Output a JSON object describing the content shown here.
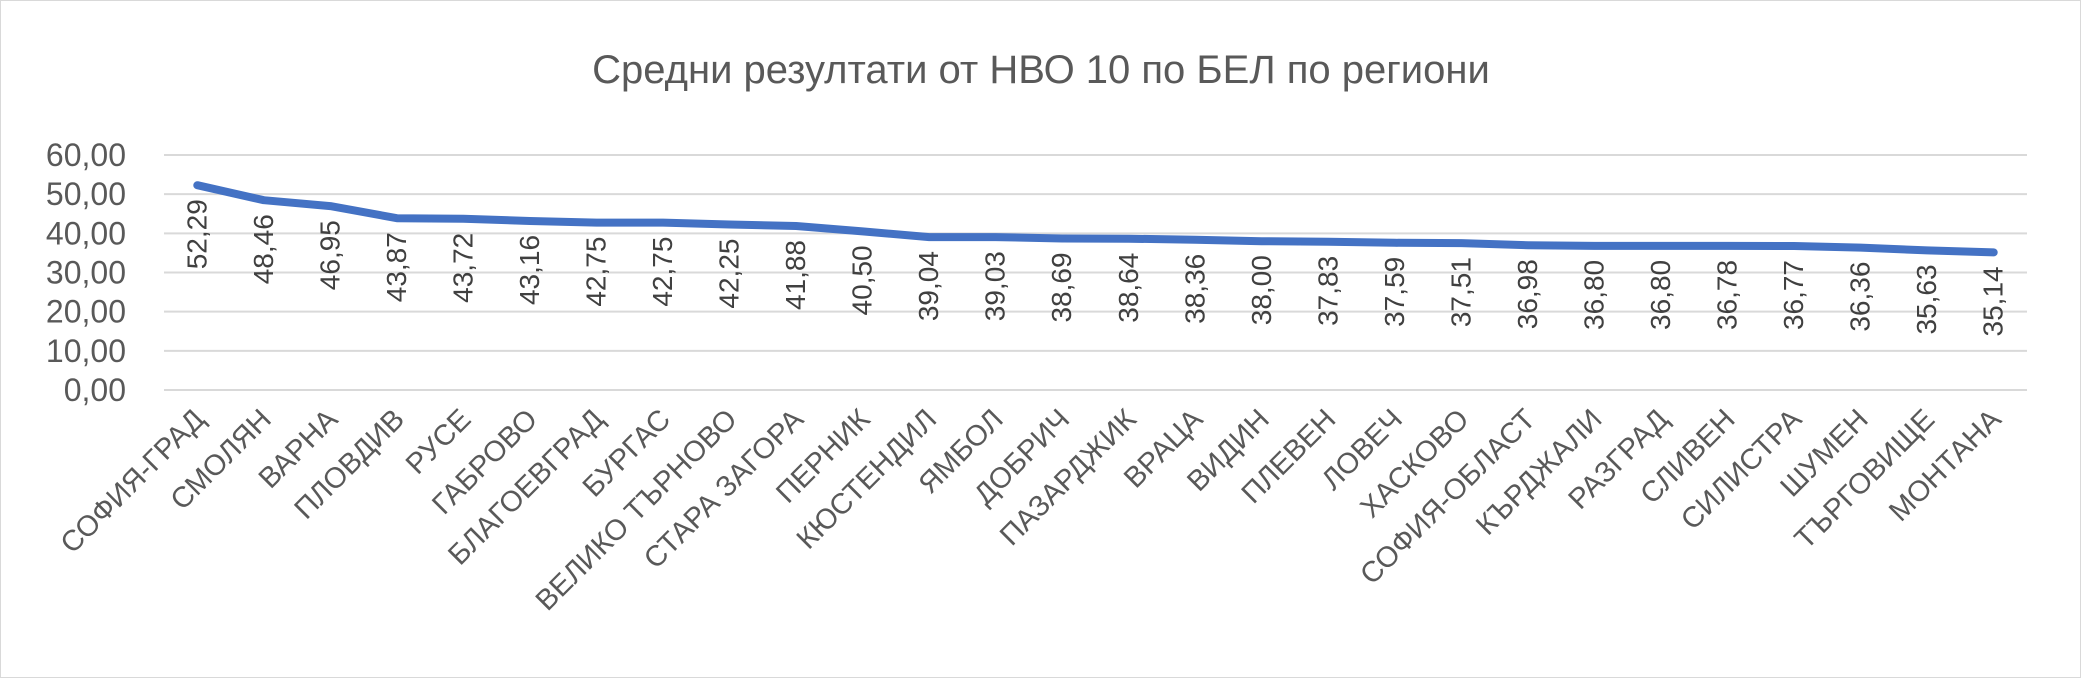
{
  "chart_data": {
    "type": "line",
    "title": "Средни резултати от НВО 10 по БЕЛ по региони",
    "xlabel": "",
    "ylabel": "",
    "ylim": [
      0,
      60
    ],
    "y_ticks": [
      "0,00",
      "10,00",
      "20,00",
      "30,00",
      "40,00",
      "50,00",
      "60,00"
    ],
    "grid": true,
    "legend": "none",
    "line_color": "#4472C4",
    "categories": [
      "СОФИЯ-ГРАД",
      "СМОЛЯН",
      "ВАРНА",
      "ПЛОВДИВ",
      "РУСЕ",
      "ГАБРОВО",
      "БЛАГОЕВГРАД",
      "БУРГАС",
      "ВЕЛИКО ТЪРНОВО",
      "СТАРА ЗАГОРА",
      "ПЕРНИК",
      "КЮСТЕНДИЛ",
      "ЯМБОЛ",
      "ДОБРИЧ",
      "ПАЗАРДЖИК",
      "ВРАЦА",
      "ВИДИН",
      "ПЛЕВЕН",
      "ЛОВЕЧ",
      "ХАСКОВО",
      "СОФИЯ-ОБЛАСТ",
      "КЪРДЖАЛИ",
      "РАЗГРАД",
      "СЛИВЕН",
      "СИЛИСТРА",
      "ШУМЕН",
      "ТЪРГОВИЩЕ",
      "МОНТАНА"
    ],
    "values": [
      52.29,
      48.46,
      46.95,
      43.87,
      43.72,
      43.16,
      42.75,
      42.75,
      42.25,
      41.88,
      40.5,
      39.04,
      39.03,
      38.69,
      38.64,
      38.36,
      38.0,
      37.83,
      37.59,
      37.51,
      36.98,
      36.8,
      36.8,
      36.78,
      36.77,
      36.36,
      35.63,
      35.14
    ],
    "data_labels": [
      "52,29",
      "48,46",
      "46,95",
      "43,87",
      "43,72",
      "43,16",
      "42,75",
      "42,75",
      "42,25",
      "41,88",
      "40,50",
      "39,04",
      "39,03",
      "38,69",
      "38,64",
      "38,36",
      "38,00",
      "37,83",
      "37,59",
      "37,51",
      "36,98",
      "36,80",
      "36,80",
      "36,78",
      "36,77",
      "36,36",
      "35,63",
      "35,14"
    ]
  }
}
